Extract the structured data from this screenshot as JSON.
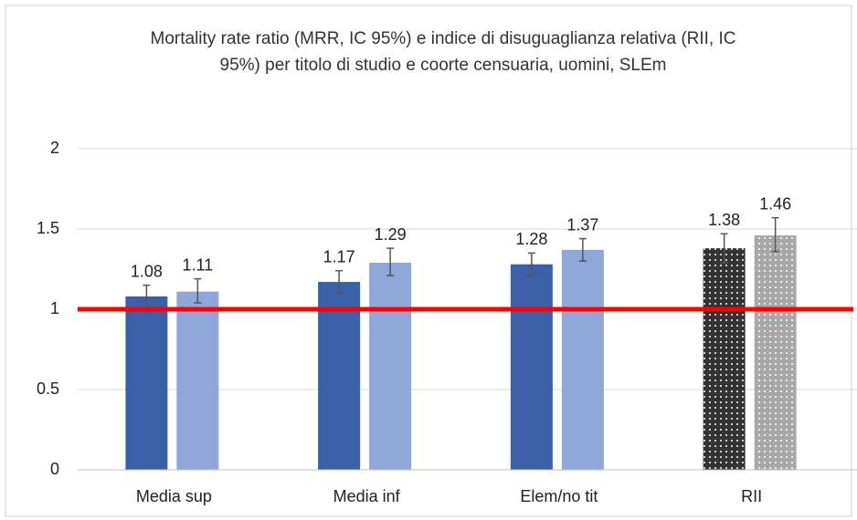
{
  "chart_data": {
    "type": "bar",
    "title": "Mortality rate ratio (MRR, IC 95%) e indice di disuguaglianza relativa (RII, IC 95%) per titolo di studio e coorte censuaria, uomini, SLEm",
    "categories": [
      "Media sup",
      "Media inf",
      "Elem/no tit",
      "RII"
    ],
    "series": [
      {
        "colors": [
          "#3a60a9",
          "#3a60a9",
          "#3a60a9",
          "#333333"
        ],
        "values": [
          1.08,
          1.17,
          1.28,
          1.38
        ],
        "ci_low": [
          1.01,
          1.1,
          1.21,
          1.29
        ],
        "ci_high": [
          1.15,
          1.24,
          1.35,
          1.47
        ]
      },
      {
        "colors": [
          "#8fa6d8",
          "#8fa6d8",
          "#8fa6d8",
          "#a8a8a8"
        ],
        "values": [
          1.11,
          1.29,
          1.37,
          1.46
        ],
        "ci_low": [
          1.04,
          1.21,
          1.3,
          1.36
        ],
        "ci_high": [
          1.19,
          1.38,
          1.44,
          1.57
        ]
      }
    ],
    "patterned": [
      false,
      false,
      false,
      true
    ],
    "reference_line": {
      "value": 1,
      "color": "#ff0000"
    },
    "ylim": [
      0,
      2
    ],
    "yticks": [
      0,
      0.5,
      1,
      1.5,
      2
    ],
    "grid": true
  }
}
